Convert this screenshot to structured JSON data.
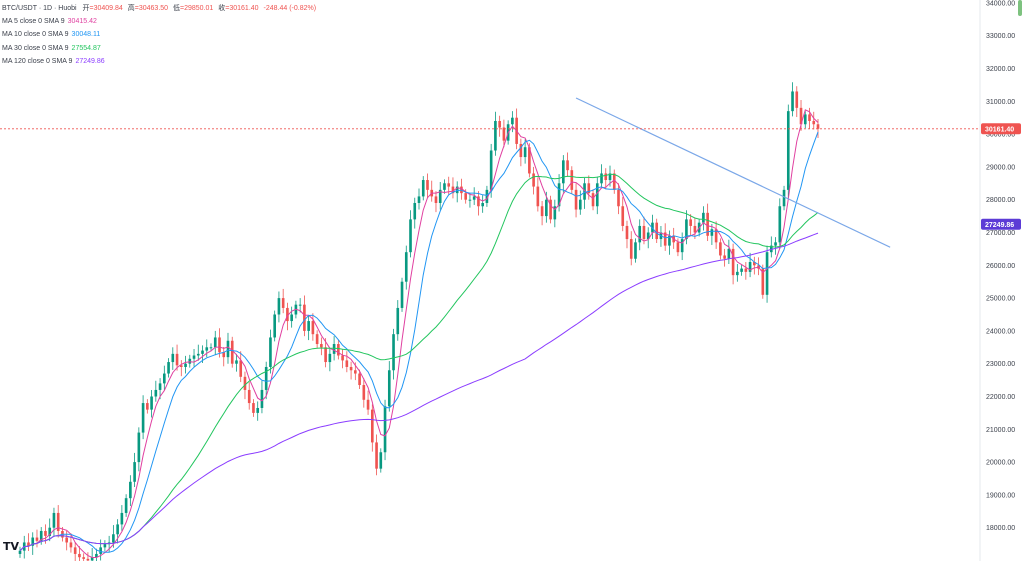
{
  "header": {
    "symbol": "BTC/USDT · 1D · Huobi",
    "ohlc": [
      {
        "label": "开",
        "value": "=30409.84"
      },
      {
        "label": "高",
        "value": "=30463.50"
      },
      {
        "label": "低",
        "value": "=29850.01"
      },
      {
        "label": "收",
        "value": "=30161.40"
      }
    ],
    "change": "-248.44 (-0.82%)"
  },
  "indicators": [
    {
      "label": "MA 5 close 0 SMA 9",
      "value": "30415.42",
      "color": "#e040a0"
    },
    {
      "label": "MA 10 close 0 SMA 9",
      "value": "30048.11",
      "color": "#2196f3"
    },
    {
      "label": "MA 30 close 0 SMA 9",
      "value": "27554.87",
      "color": "#22c55e"
    },
    {
      "label": "MA 120 close 0 SMA 9",
      "value": "27249.86",
      "color": "#8b3dff"
    }
  ],
  "price_tags": {
    "last": {
      "value": "30161.40",
      "price": 30161.4,
      "color": "#ef5350"
    },
    "ma120": {
      "value": "27249.86",
      "price": 27249.86,
      "color": "#5c3bd6"
    }
  },
  "logo_text": "TV",
  "colors": {
    "up": "#089981",
    "down": "#ef5350",
    "trendline": "#7aa7e8"
  },
  "chart_data": {
    "type": "candlestick",
    "title": "BTC/USDT · 1D · Huobi",
    "ylim": [
      17000,
      34500
    ],
    "y_ticks": [
      "18000.00",
      "19000.00",
      "20000.00",
      "21000.00",
      "22000.00",
      "23000.00",
      "24000.00",
      "25000.00",
      "26000.00",
      "27000.00",
      "28000.00",
      "29000.00",
      "30000.00",
      "31000.00",
      "32000.00",
      "33000.00",
      "34000.00"
    ],
    "grid": false,
    "candle_close": [
      17300,
      17550,
      17450,
      17700,
      17600,
      17900,
      17750,
      18000,
      18450,
      17900,
      17700,
      17550,
      17400,
      17200,
      17100,
      17050,
      17000,
      17100,
      17200,
      17400,
      17500,
      17550,
      17800,
      18100,
      18450,
      18900,
      19400,
      20000,
      20900,
      21800,
      21600,
      22000,
      22200,
      22400,
      22700,
      23050,
      23300,
      22950,
      22900,
      23000,
      23150,
      23250,
      23300,
      23400,
      23500,
      23500,
      23800,
      23350,
      23200,
      23700,
      23000,
      23100,
      22600,
      22200,
      21800,
      21500,
      21650,
      22200,
      22900,
      23800,
      24500,
      25000,
      24700,
      24300,
      24500,
      24800,
      24800,
      24000,
      24300,
      23900,
      23600,
      23500,
      23050,
      23300,
      23600,
      23250,
      23100,
      22900,
      22800,
      22700,
      22350,
      21900,
      21600,
      20600,
      19800,
      20300,
      21700,
      22800,
      23900,
      24700,
      25500,
      26400,
      27400,
      27900,
      28100,
      28600,
      28300,
      28100,
      27900,
      28300,
      28500,
      28400,
      28200,
      28400,
      28200,
      28000,
      28000,
      28100,
      27800,
      27900,
      28300,
      29500,
      30400,
      30200,
      29800,
      30300,
      30500,
      29700,
      29300,
      29600,
      28800,
      28400,
      27800,
      27500,
      28000,
      27400,
      27800,
      28500,
      29200,
      28900,
      28300,
      27700,
      28000,
      28500,
      28200,
      27800,
      28500,
      28800,
      28600,
      28800,
      28300,
      27800,
      27200,
      26800,
      26200,
      26700,
      27200,
      26800,
      27000,
      27300,
      26800,
      27000,
      26600,
      26900,
      26700,
      26400,
      26800,
      27400,
      27200,
      27000,
      27300,
      27600,
      26900,
      27100,
      26700,
      26300,
      26200,
      26500,
      25700,
      25800,
      25900,
      25800,
      26100,
      26000,
      25900,
      25100,
      26400,
      26600,
      26700,
      27800,
      28300,
      30700,
      31300,
      30800,
      30300,
      30600,
      30400,
      30300,
      30161.4
    ],
    "moving_averages": [
      {
        "name": "MA 5",
        "period": 5
      },
      {
        "name": "MA 10",
        "period": 10
      },
      {
        "name": "MA 30",
        "period": 30
      },
      {
        "name": "MA 120",
        "period": 120
      }
    ],
    "trendline": {
      "from": {
        "bar": 131,
        "price": 31100
      },
      "to": {
        "bar": 205,
        "price": 26550
      }
    }
  }
}
